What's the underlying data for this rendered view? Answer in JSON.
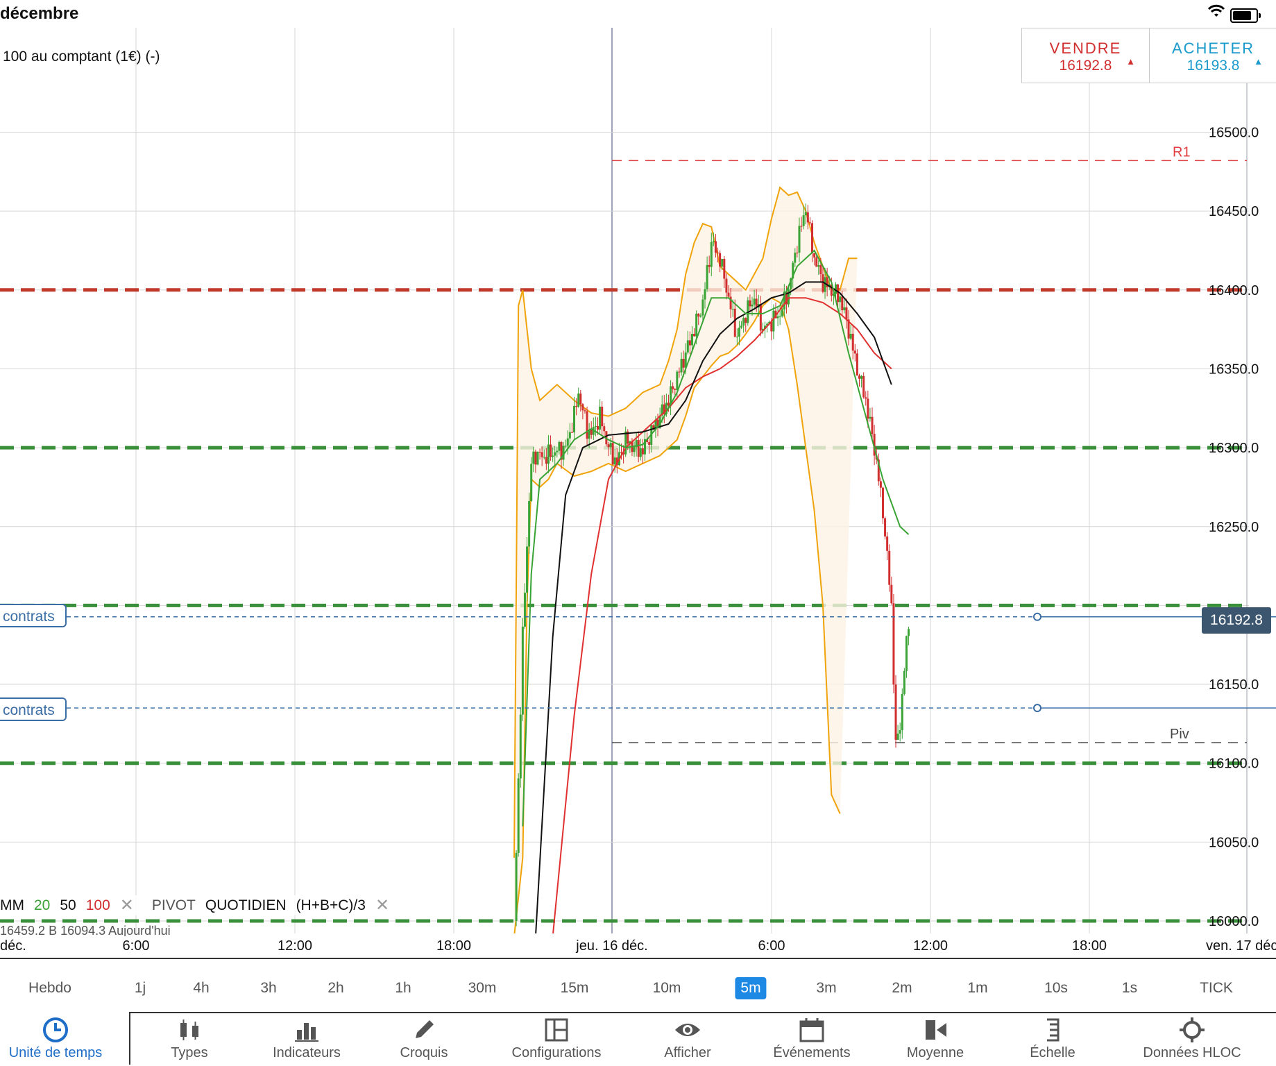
{
  "status_bar": {
    "date": "décembre"
  },
  "instrument": {
    "title": "100 au comptant (1€) (-)"
  },
  "trade": {
    "sell_label": "VENDRE",
    "sell_price": "16192.8",
    "buy_label": "ACHETER",
    "buy_price": "16193.8"
  },
  "orders": [
    {
      "label": "contrats",
      "price": 16192.8
    },
    {
      "label": "contrats",
      "price": 16135
    }
  ],
  "current_price": "16192.8",
  "legend": {
    "mm": "MM",
    "mm20": "20",
    "mm50": "50",
    "mm100": "100",
    "pivot": "PIVOT",
    "pivot_period": "QUOTIDIEN",
    "pivot_formula": "(H+B+C)/3",
    "close": "✕",
    "hloc_line": "16459.2   B 16094.3   Aujourd'hui"
  },
  "x_axis": {
    "labels": [
      "déc.",
      "6:00",
      "12:00",
      "18:00",
      "jeu. 16 déc.",
      "6:00",
      "12:00",
      "18:00",
      "ven. 17 déc."
    ]
  },
  "timeframes": [
    "Hebdo",
    "1j",
    "4h",
    "3h",
    "2h",
    "1h",
    "30m",
    "15m",
    "10m",
    "5m",
    "3m",
    "2m",
    "1m",
    "10s",
    "1s",
    "TICK"
  ],
  "active_timeframe": "5m",
  "toolbar": [
    {
      "label": "Unité de temps",
      "icon": "clock-icon"
    },
    {
      "label": "Types",
      "icon": "candlestick-icon"
    },
    {
      "label": "Indicateurs",
      "icon": "bar-chart-icon"
    },
    {
      "label": "Croquis",
      "icon": "pencil-icon"
    },
    {
      "label": "Configurations",
      "icon": "layout-icon"
    },
    {
      "label": "Afficher",
      "icon": "eye-icon"
    },
    {
      "label": "Événements",
      "icon": "calendar-icon"
    },
    {
      "label": "Moyenne",
      "icon": "video-icon"
    },
    {
      "label": "Échelle",
      "icon": "scale-icon"
    },
    {
      "label": "Données HLOC",
      "icon": "crosshair-icon"
    }
  ],
  "colors": {
    "accent": "#1e88e5",
    "up": "#3aa335",
    "down": "#d12f2f",
    "bollinger": "#f0a30a",
    "ma20": "#3aa335",
    "ma50": "#111111",
    "ma100": "#e03030",
    "support": "#3a8f3a",
    "resistance": "#c0392b",
    "order": "#3a6ea5"
  },
  "chart_data": {
    "type": "line",
    "y_axis": {
      "ticks": [
        16500,
        16450,
        16400,
        16350,
        16300,
        16250,
        16150,
        16100,
        16050,
        16000
      ],
      "range": [
        15985,
        16565
      ]
    },
    "horizontal_levels": [
      {
        "name": "R1",
        "value": 16482,
        "style": "red-dashed"
      },
      {
        "name": "Piv",
        "value": 16113,
        "style": "black-dashed"
      },
      {
        "value": 16400,
        "style": "red-thick-dashed"
      },
      {
        "value": 16300,
        "style": "green-thick-dashed"
      },
      {
        "value": 16200,
        "style": "green-thick-dashed"
      },
      {
        "value": 16100,
        "style": "green-thick-dashed"
      },
      {
        "value": 16000,
        "style": "green-thick-dashed"
      }
    ],
    "price_series": [
      [
        0,
        16000
      ],
      [
        2,
        16180
      ],
      [
        3,
        16240
      ],
      [
        4,
        16290
      ],
      [
        5,
        16296
      ],
      [
        7,
        16294
      ],
      [
        10,
        16298
      ],
      [
        12,
        16300
      ],
      [
        14,
        16320
      ],
      [
        15,
        16335
      ],
      [
        17,
        16312
      ],
      [
        18,
        16308
      ],
      [
        20,
        16320
      ],
      [
        22,
        16300
      ],
      [
        24,
        16290
      ],
      [
        26,
        16305
      ],
      [
        28,
        16300
      ],
      [
        30,
        16298
      ],
      [
        32,
        16310
      ],
      [
        34,
        16320
      ],
      [
        36,
        16330
      ],
      [
        38,
        16345
      ],
      [
        40,
        16360
      ],
      [
        42,
        16375
      ],
      [
        44,
        16392
      ],
      [
        46,
        16430
      ],
      [
        48,
        16420
      ],
      [
        50,
        16395
      ],
      [
        52,
        16370
      ],
      [
        54,
        16385
      ],
      [
        56,
        16395
      ],
      [
        58,
        16375
      ],
      [
        60,
        16380
      ],
      [
        62,
        16385
      ],
      [
        64,
        16400
      ],
      [
        66,
        16430
      ],
      [
        68,
        16452
      ],
      [
        70,
        16420
      ],
      [
        72,
        16405
      ],
      [
        74,
        16400
      ],
      [
        76,
        16395
      ],
      [
        78,
        16375
      ],
      [
        80,
        16350
      ],
      [
        82,
        16330
      ],
      [
        84,
        16300
      ],
      [
        86,
        16260
      ],
      [
        88,
        16200
      ],
      [
        89,
        16110
      ],
      [
        90,
        16125
      ],
      [
        91,
        16160
      ],
      [
        92,
        16190
      ]
    ],
    "ma20": [
      [
        2,
        16060
      ],
      [
        4,
        16220
      ],
      [
        6,
        16280
      ],
      [
        10,
        16290
      ],
      [
        14,
        16305
      ],
      [
        18,
        16312
      ],
      [
        22,
        16305
      ],
      [
        26,
        16300
      ],
      [
        30,
        16302
      ],
      [
        34,
        16315
      ],
      [
        38,
        16335
      ],
      [
        42,
        16365
      ],
      [
        46,
        16395
      ],
      [
        50,
        16395
      ],
      [
        54,
        16385
      ],
      [
        58,
        16385
      ],
      [
        62,
        16390
      ],
      [
        66,
        16415
      ],
      [
        70,
        16425
      ],
      [
        74,
        16405
      ],
      [
        78,
        16360
      ],
      [
        82,
        16320
      ],
      [
        86,
        16280
      ],
      [
        90,
        16250
      ],
      [
        92,
        16245
      ]
    ],
    "ma50": [
      [
        5,
        15990
      ],
      [
        9,
        16180
      ],
      [
        12,
        16270
      ],
      [
        16,
        16300
      ],
      [
        22,
        16308
      ],
      [
        30,
        16310
      ],
      [
        36,
        16315
      ],
      [
        40,
        16330
      ],
      [
        44,
        16355
      ],
      [
        48,
        16372
      ],
      [
        52,
        16382
      ],
      [
        56,
        16388
      ],
      [
        60,
        16395
      ],
      [
        64,
        16398
      ],
      [
        68,
        16405
      ],
      [
        72,
        16405
      ],
      [
        76,
        16398
      ],
      [
        80,
        16385
      ],
      [
        84,
        16370
      ],
      [
        88,
        16340
      ]
    ],
    "ma100": [
      [
        9,
        15990
      ],
      [
        14,
        16130
      ],
      [
        18,
        16220
      ],
      [
        22,
        16280
      ],
      [
        26,
        16300
      ],
      [
        30,
        16310
      ],
      [
        36,
        16325
      ],
      [
        40,
        16338
      ],
      [
        44,
        16345
      ],
      [
        48,
        16350
      ],
      [
        52,
        16358
      ],
      [
        56,
        16368
      ],
      [
        60,
        16380
      ],
      [
        64,
        16395
      ],
      [
        68,
        16395
      ],
      [
        72,
        16392
      ],
      [
        76,
        16385
      ],
      [
        80,
        16375
      ],
      [
        84,
        16360
      ],
      [
        88,
        16350
      ]
    ],
    "bb_upper": [
      [
        0,
        16040
      ],
      [
        1,
        16390
      ],
      [
        2,
        16400
      ],
      [
        4,
        16350
      ],
      [
        6,
        16330
      ],
      [
        10,
        16340
      ],
      [
        14,
        16330
      ],
      [
        18,
        16322
      ],
      [
        22,
        16320
      ],
      [
        26,
        16325
      ],
      [
        30,
        16335
      ],
      [
        34,
        16340
      ],
      [
        36,
        16355
      ],
      [
        38,
        16375
      ],
      [
        40,
        16410
      ],
      [
        42,
        16430
      ],
      [
        44,
        16442
      ],
      [
        46,
        16440
      ],
      [
        48,
        16415
      ],
      [
        50,
        16410
      ],
      [
        52,
        16405
      ],
      [
        54,
        16400
      ],
      [
        56,
        16410
      ],
      [
        58,
        16420
      ],
      [
        60,
        16445
      ],
      [
        62,
        16465
      ],
      [
        64,
        16460
      ],
      [
        66,
        16462
      ],
      [
        68,
        16450
      ],
      [
        70,
        16430
      ],
      [
        72,
        16415
      ],
      [
        74,
        16400
      ],
      [
        76,
        16400
      ],
      [
        78,
        16420
      ],
      [
        80,
        16420
      ]
    ],
    "bb_lower": [
      [
        0,
        15990
      ],
      [
        2,
        16040
      ],
      [
        3,
        16200
      ],
      [
        4,
        16280
      ],
      [
        6,
        16275
      ],
      [
        8,
        16280
      ],
      [
        10,
        16290
      ],
      [
        14,
        16282
      ],
      [
        18,
        16285
      ],
      [
        22,
        16290
      ],
      [
        26,
        16285
      ],
      [
        30,
        16290
      ],
      [
        34,
        16295
      ],
      [
        38,
        16305
      ],
      [
        40,
        16320
      ],
      [
        42,
        16338
      ],
      [
        44,
        16345
      ],
      [
        46,
        16352
      ],
      [
        48,
        16358
      ],
      [
        50,
        16360
      ],
      [
        52,
        16365
      ],
      [
        54,
        16372
      ],
      [
        56,
        16380
      ],
      [
        58,
        16390
      ],
      [
        60,
        16395
      ],
      [
        62,
        16392
      ],
      [
        64,
        16375
      ],
      [
        66,
        16340
      ],
      [
        68,
        16300
      ],
      [
        70,
        16260
      ],
      [
        72,
        16200
      ],
      [
        74,
        16080
      ],
      [
        76,
        16068
      ]
    ]
  }
}
